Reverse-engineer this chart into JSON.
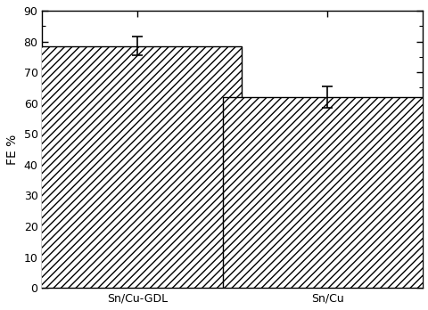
{
  "categories": [
    "Sn/Cu-GDL",
    "Sn/Cu"
  ],
  "values": [
    78.5,
    62.0
  ],
  "errors": [
    3.0,
    3.5
  ],
  "bar_color": "#ffffff",
  "bar_edgecolor": "#000000",
  "hatch": "////",
  "ylabel": "FE %",
  "ylim": [
    0,
    90
  ],
  "yticks": [
    0,
    10,
    20,
    30,
    40,
    50,
    60,
    70,
    80,
    90
  ],
  "bar_width": 0.55,
  "bar_positions": [
    0.25,
    0.75
  ],
  "xlim": [
    0.0,
    1.0
  ],
  "figsize": [
    4.81,
    3.48
  ],
  "dpi": 100,
  "background_color": "#ffffff",
  "errorbar_color": "#000000",
  "errorbar_capsize": 4,
  "errorbar_linewidth": 1.2,
  "tick_fontsize": 9,
  "label_fontsize": 10,
  "spine_linewidth": 1.0
}
